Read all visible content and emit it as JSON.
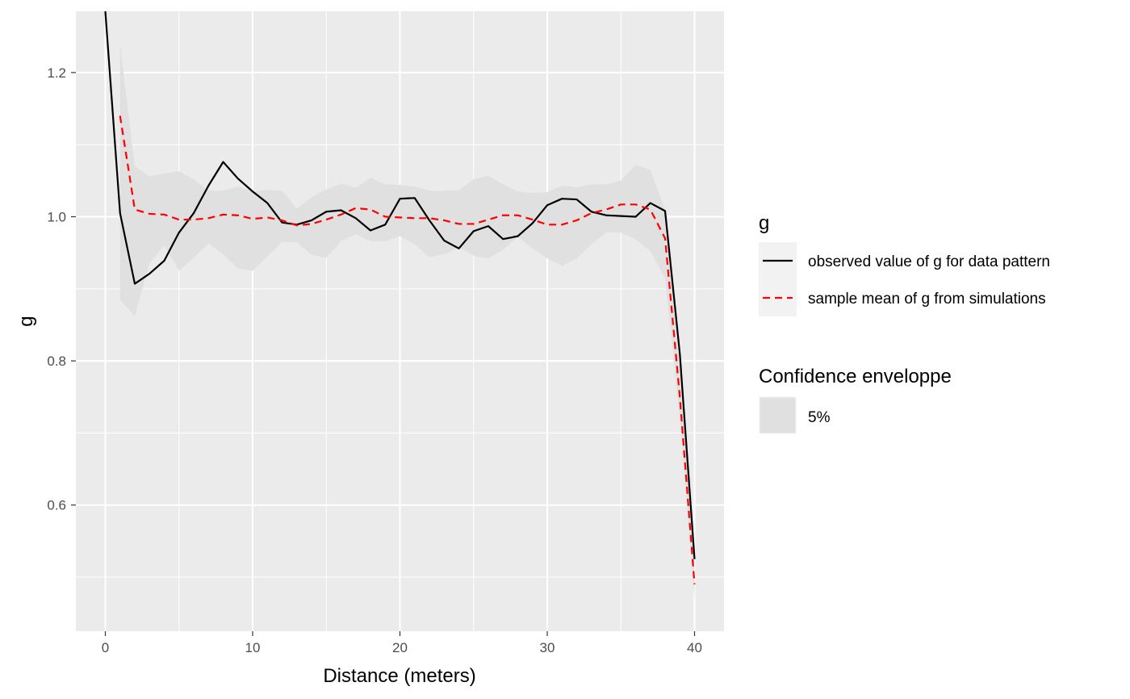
{
  "chart_data": {
    "type": "line",
    "xlabel": "Distance (meters)",
    "ylabel": "g",
    "xlim": [
      -2,
      42
    ],
    "ylim": [
      0.425,
      1.285
    ],
    "x_ticks": [
      0,
      10,
      20,
      30,
      40
    ],
    "y_ticks": [
      0.6,
      0.8,
      1.0,
      1.2
    ],
    "x_tick_labels": [
      "0",
      "10",
      "20",
      "30",
      "40"
    ],
    "y_tick_labels": [
      "0.6",
      "0.8",
      "1.0",
      "1.2"
    ],
    "grid": true,
    "legend_position": "right",
    "series": [
      {
        "name": "observed value of g for data pattern",
        "color": "#000000",
        "dash": "solid",
        "x": [
          0,
          1,
          2,
          3,
          4,
          5,
          6,
          7,
          8,
          9,
          10,
          11,
          12,
          13,
          14,
          15,
          16,
          17,
          18,
          19,
          20,
          21,
          22,
          23,
          24,
          25,
          26,
          27,
          28,
          29,
          30,
          31,
          32,
          33,
          34,
          35,
          36,
          37,
          38,
          39,
          40
        ],
        "values": [
          1.285,
          1.005,
          0.907,
          0.921,
          0.939,
          0.978,
          1.005,
          1.043,
          1.076,
          1.053,
          1.035,
          1.019,
          0.992,
          0.989,
          0.995,
          1.007,
          1.009,
          0.998,
          0.981,
          0.989,
          1.025,
          1.026,
          0.995,
          0.967,
          0.956,
          0.98,
          0.987,
          0.969,
          0.973,
          0.991,
          1.016,
          1.025,
          1.024,
          1.007,
          1.002,
          1.001,
          1.0,
          1.019,
          1.008,
          0.81,
          0.525
        ]
      },
      {
        "name": "sample mean of g from simulations",
        "color": "#ff0000",
        "dash": "dashed",
        "x": [
          1,
          2,
          3,
          4,
          5,
          6,
          7,
          8,
          9,
          10,
          11,
          12,
          13,
          14,
          15,
          16,
          17,
          18,
          19,
          20,
          21,
          22,
          23,
          24,
          25,
          26,
          27,
          28,
          29,
          30,
          31,
          32,
          33,
          34,
          35,
          36,
          37,
          38,
          39,
          40
        ],
        "values": [
          1.14,
          1.01,
          1.004,
          1.003,
          0.996,
          0.996,
          0.998,
          1.003,
          1.002,
          0.997,
          0.999,
          0.995,
          0.988,
          0.99,
          0.996,
          1.003,
          1.012,
          1.01,
          1.0,
          0.999,
          0.998,
          0.998,
          0.995,
          0.99,
          0.99,
          0.996,
          1.002,
          1.002,
          0.996,
          0.989,
          0.989,
          0.995,
          1.005,
          1.01,
          1.017,
          1.017,
          1.01,
          0.97,
          0.75,
          0.49
        ]
      }
    ],
    "envelope": {
      "name": "5%",
      "color": "#e0e0e0",
      "x": [
        1,
        2,
        3,
        4,
        5,
        6,
        7,
        8,
        9,
        10,
        11,
        12,
        13,
        14,
        15,
        16,
        17,
        18,
        19,
        20,
        21,
        22,
        23,
        24,
        25,
        26,
        27,
        28,
        29,
        30,
        31,
        32,
        33,
        34,
        35,
        36,
        37,
        38,
        39,
        40
      ],
      "upper": [
        1.24,
        1.07,
        1.056,
        1.06,
        1.063,
        1.052,
        1.036,
        1.036,
        1.042,
        1.035,
        1.037,
        1.036,
        1.011,
        1.027,
        1.038,
        1.046,
        1.04,
        1.054,
        1.045,
        1.044,
        1.042,
        1.036,
        1.036,
        1.037,
        1.052,
        1.057,
        1.045,
        1.035,
        1.033,
        1.034,
        1.043,
        1.041,
        1.045,
        1.045,
        1.05,
        1.072,
        1.065,
        1.01,
        0.79,
        0.52
      ],
      "lower": [
        0.885,
        0.862,
        0.935,
        0.96,
        0.925,
        0.943,
        0.963,
        0.948,
        0.928,
        0.925,
        0.945,
        0.965,
        0.965,
        0.947,
        0.943,
        0.966,
        0.976,
        0.966,
        0.966,
        0.973,
        0.962,
        0.944,
        0.948,
        0.958,
        0.946,
        0.942,
        0.954,
        0.972,
        0.956,
        0.942,
        0.932,
        0.942,
        0.962,
        0.978,
        0.978,
        0.969,
        0.952,
        0.915,
        0.72,
        0.47
      ]
    },
    "legend": {
      "line_title": "g",
      "fill_title": "Confidence enveloppe",
      "fill_label": "5%"
    }
  }
}
